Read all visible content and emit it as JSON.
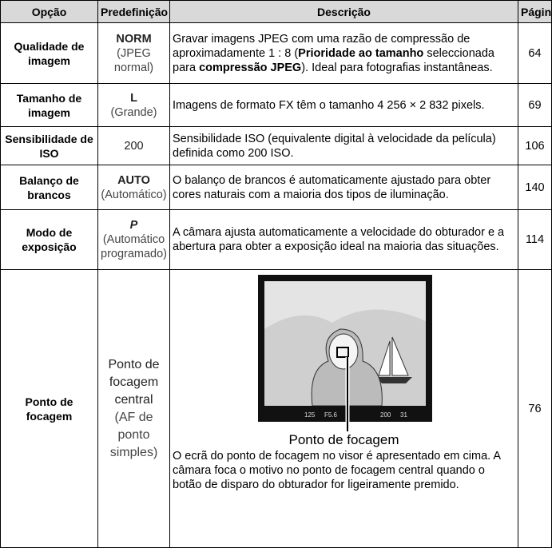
{
  "table": {
    "header": [
      "Opção",
      "Predefinição",
      "Descrição",
      "Página"
    ],
    "rows": [
      {
        "option": "Qualidade de imagem",
        "setting": "NORM",
        "note": "(JPEG normal)",
        "description": [
          {
            "text": "Gravar imagens JPEG com uma razão de compressão de aproximadamente 1 : 8 (",
            "bold": false
          },
          {
            "text": "Prioridade ao tamanho",
            "bold": true
          },
          {
            "text": " seleccionada para ",
            "bold": false
          },
          {
            "text": "compressão JPEG",
            "bold": true
          },
          {
            "text": "). Ideal para fotografias instantâneas.",
            "bold": false
          }
        ],
        "page": "64"
      },
      {
        "option": "Tamanho de imagem",
        "setting": "L",
        "note": "(Grande)",
        "description": [
          {
            "text": "Imagens de formato FX têm o tamanho 4 256 × 2 832 pixels.",
            "bold": false
          }
        ],
        "page": "69"
      },
      {
        "option": "Sensibilidade de ISO",
        "setting": "200",
        "description": [
          {
            "text": "Sensibilidade ISO (equivalente digital à velocidade da película) definida como 200 ISO.",
            "bold": false
          }
        ],
        "page": "106"
      },
      {
        "option": "Balanço de brancos",
        "setting": "AUTO",
        "note": "(Automático)",
        "description": [
          {
            "text": "O balanço de brancos é automaticamente ajustado para obter cores naturais com a maioria dos tipos de iluminação.",
            "bold": false
          }
        ],
        "page": "140"
      },
      {
        "option": "Modo de exposição",
        "setting": "P",
        "note": "(Automático programado)",
        "description": [
          {
            "text": "A câmara ajusta automaticamente a velocidade do obturador e a abertura para obter a exposição ideal na maioria das situações.",
            "bold": false
          }
        ],
        "page": "114"
      },
      {
        "option": "Ponto de focagem",
        "setting": "Ponto de focagem central",
        "note": "(AF de ponto simples)",
        "readout": [
          "125",
          "F5.6",
          "200",
          "31"
        ],
        "caption": "Ponto de focagem",
        "description": [
          {
            "text": "O ecrã do ponto de focagem no visor é apresentado em cima. A câmara foca o motivo no ponto de focagem central quando o botão de disparo do obturador for ligeiramente premido.",
            "bold": false
          }
        ],
        "page": "76"
      }
    ]
  }
}
